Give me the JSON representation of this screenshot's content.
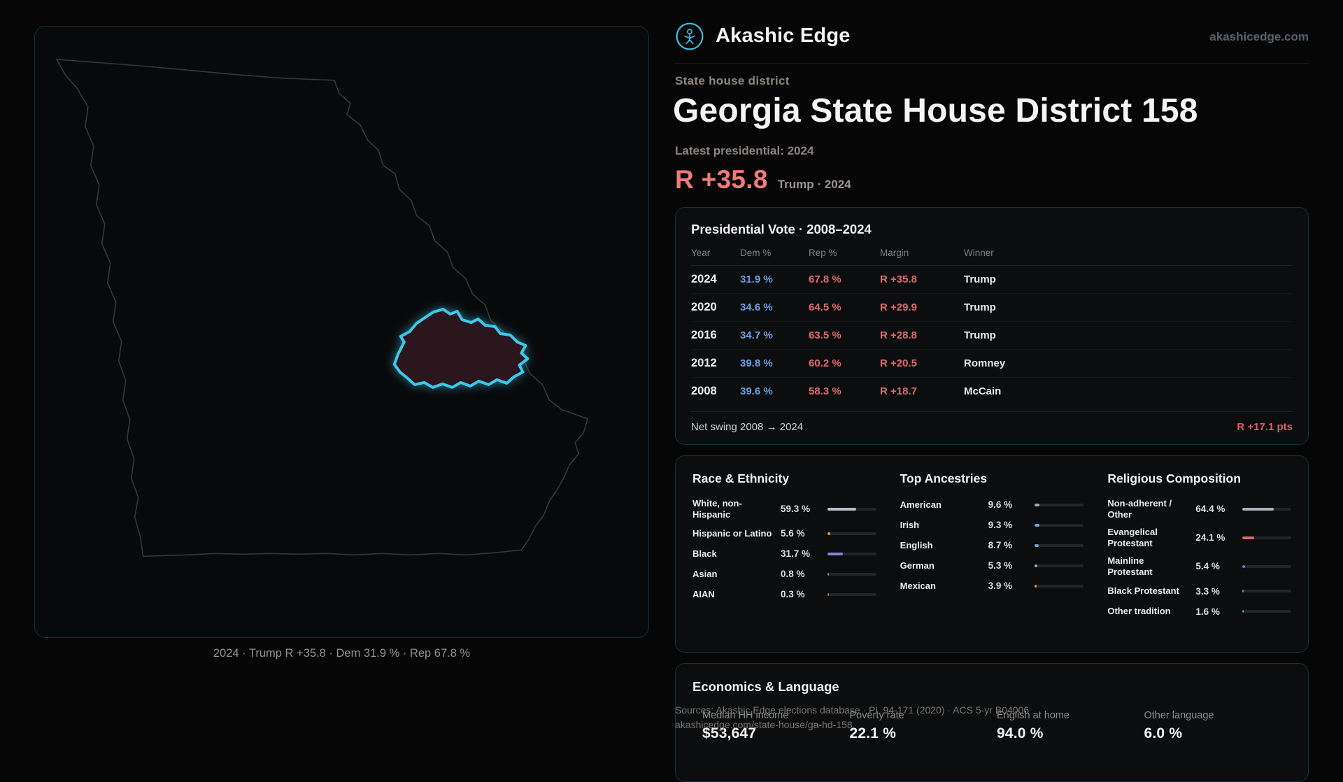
{
  "brand": {
    "name": "Akashic Edge",
    "site": "akashicedge.com"
  },
  "header": {
    "kicker": "State house district",
    "title": "Georgia State House District 158",
    "latest_label": "Latest presidential: 2024",
    "headline_margin": "R +35.8",
    "headline_context": "Trump · 2024"
  },
  "map": {
    "caption": "2024 · Trump R +35.8 · Dem 31.9 % · Rep 67.8 %"
  },
  "presidential": {
    "title": "Presidential Vote · 2008–2024",
    "columns": [
      "Year",
      "Dem %",
      "Rep %",
      "Margin",
      "Winner"
    ],
    "rows": [
      {
        "year": "2024",
        "dem": "31.9 %",
        "rep": "67.8 %",
        "margin": "R +35.8",
        "winner": "Trump"
      },
      {
        "year": "2020",
        "dem": "34.6 %",
        "rep": "64.5 %",
        "margin": "R +29.9",
        "winner": "Trump"
      },
      {
        "year": "2016",
        "dem": "34.7 %",
        "rep": "63.5 %",
        "margin": "R +28.8",
        "winner": "Trump"
      },
      {
        "year": "2012",
        "dem": "39.8 %",
        "rep": "60.2 %",
        "margin": "R +20.5",
        "winner": "Romney"
      },
      {
        "year": "2008",
        "dem": "39.6 %",
        "rep": "58.3 %",
        "margin": "R +18.7",
        "winner": "McCain"
      }
    ],
    "net_swing_label": "Net swing 2008 → 2024",
    "net_swing_value": "R +17.1 pts"
  },
  "demographics": {
    "race": {
      "title": "Race & Ethnicity",
      "rows": [
        {
          "label": "White, non-Hispanic",
          "value": "59.3 %",
          "pct": 59.3,
          "color": "#b9bfc6"
        },
        {
          "label": "Hispanic or Latino",
          "value": "5.6 %",
          "pct": 5.6,
          "color": "#e59a3c"
        },
        {
          "label": "Black",
          "value": "31.7 %",
          "pct": 31.7,
          "color": "#8d7fd6"
        },
        {
          "label": "Asian",
          "value": "0.8 %",
          "pct": 0.8,
          "color": "#4fae7c"
        },
        {
          "label": "AIAN",
          "value": "0.3 %",
          "pct": 0.3,
          "color": "#d4704e"
        }
      ]
    },
    "ancestries": {
      "title": "Top Ancestries",
      "rows": [
        {
          "label": "American",
          "value": "9.6 %",
          "pct": 9.6,
          "color": "#9fa8b2"
        },
        {
          "label": "Irish",
          "value": "9.3 %",
          "pct": 9.3,
          "color": "#7a9bd4"
        },
        {
          "label": "English",
          "value": "8.7 %",
          "pct": 8.7,
          "color": "#7a9bd4"
        },
        {
          "label": "German",
          "value": "5.3 %",
          "pct": 5.3,
          "color": "#9fa8b2"
        },
        {
          "label": "Mexican",
          "value": "3.9 %",
          "pct": 3.9,
          "color": "#e59a3c"
        }
      ]
    },
    "religion": {
      "title": "Religious Composition",
      "rows": [
        {
          "label": "Non-adherent / Other",
          "value": "64.4 %",
          "pct": 64.4,
          "color": "#aab1b9"
        },
        {
          "label": "Evangelical Protestant",
          "value": "24.1 %",
          "pct": 24.1,
          "color": "#e06a6a"
        },
        {
          "label": "Mainline Protestant",
          "value": "5.4 %",
          "pct": 5.4,
          "color": "#4d84d8"
        },
        {
          "label": "Black Protestant",
          "value": "3.3 %",
          "pct": 3.3,
          "color": "#7f8fd2"
        },
        {
          "label": "Other tradition",
          "value": "1.6 %",
          "pct": 1.6,
          "color": "#45b9c9"
        }
      ]
    }
  },
  "economics": {
    "title": "Economics & Language",
    "stats": [
      {
        "label": "Median HH income",
        "value": "$53,647"
      },
      {
        "label": "Poverty rate",
        "value": "22.1 %"
      },
      {
        "label": "English at home",
        "value": "94.0 %"
      },
      {
        "label": "Other language",
        "value": "6.0 %"
      }
    ]
  },
  "footer": {
    "sources": "Sources: Akashic Edge elections database · PL 94-171 (2020) · ACS 5-yr B04006",
    "permalink": "akashicedge.com/state-house/ga-hd-158"
  },
  "colors": {
    "accent_cyan": "#3bc9ea",
    "rep_red": "#ef7b7b",
    "dem_blue": "#6d9ee0",
    "district_fill": "#2a151b",
    "background": "#060607"
  },
  "chart_data": [
    {
      "type": "table",
      "title": "Presidential Vote · 2008–2024",
      "columns": [
        "Year",
        "Dem %",
        "Rep %",
        "Margin",
        "Winner"
      ],
      "rows": [
        [
          "2024",
          31.9,
          67.8,
          "R +35.8",
          "Trump"
        ],
        [
          "2020",
          34.6,
          64.5,
          "R +29.9",
          "Trump"
        ],
        [
          "2016",
          34.7,
          63.5,
          "R +28.8",
          "Trump"
        ],
        [
          "2012",
          39.8,
          60.2,
          "R +20.5",
          "Romney"
        ],
        [
          "2008",
          39.6,
          58.3,
          "R +18.7",
          "McCain"
        ]
      ],
      "note": "Net swing 2008 → 2024: R +17.1 pts"
    },
    {
      "type": "bar",
      "title": "Race & Ethnicity",
      "categories": [
        "White, non-Hispanic",
        "Hispanic or Latino",
        "Black",
        "Asian",
        "AIAN"
      ],
      "values": [
        59.3,
        5.6,
        31.7,
        0.8,
        0.3
      ],
      "unit": "%",
      "xlim": [
        0,
        100
      ],
      "orientation": "horizontal"
    },
    {
      "type": "bar",
      "title": "Top Ancestries",
      "categories": [
        "American",
        "Irish",
        "English",
        "German",
        "Mexican"
      ],
      "values": [
        9.6,
        9.3,
        8.7,
        5.3,
        3.9
      ],
      "unit": "%",
      "xlim": [
        0,
        100
      ],
      "orientation": "horizontal"
    },
    {
      "type": "bar",
      "title": "Religious Composition",
      "categories": [
        "Non-adherent / Other",
        "Evangelical Protestant",
        "Mainline Protestant",
        "Black Protestant",
        "Other tradition"
      ],
      "values": [
        64.4,
        24.1,
        5.4,
        3.3,
        1.6
      ],
      "unit": "%",
      "xlim": [
        0,
        100
      ],
      "orientation": "horizontal"
    },
    {
      "type": "table",
      "title": "Economics & Language",
      "columns": [
        "Median HH income",
        "Poverty rate",
        "English at home",
        "Other language"
      ],
      "rows": [
        [
          "$53,647",
          "22.1 %",
          "94.0 %",
          "6.0 %"
        ]
      ]
    }
  ]
}
